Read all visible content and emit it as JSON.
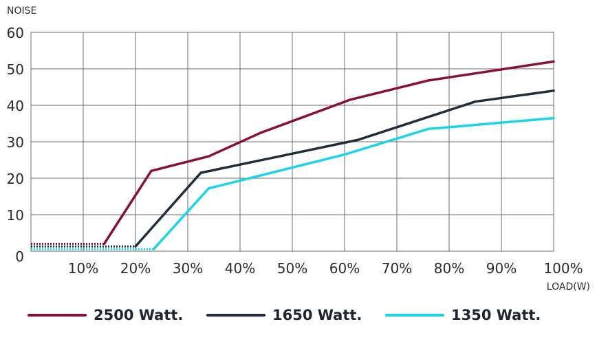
{
  "chart_data": {
    "type": "line",
    "ylabel": "NOISE",
    "xlabel": "LOAD(W)",
    "x_ticks": [
      "10%",
      "20%",
      "30%",
      "40%",
      "50%",
      "60%",
      "70%",
      "80%",
      "90%",
      "100%"
    ],
    "y_ticks": [
      "0",
      "10",
      "20",
      "30",
      "40",
      "50",
      "60"
    ],
    "xlim": [
      0,
      100
    ],
    "ylim": [
      0,
      60
    ],
    "grid": true,
    "legend_position": "bottom",
    "series": [
      {
        "name": "2500 Watt.",
        "color": "#8a0e3c",
        "dotted_segment": [
          [
            0,
            2
          ],
          [
            14,
            2
          ]
        ],
        "points": [
          [
            14,
            2
          ],
          [
            23,
            22
          ],
          [
            34,
            26
          ],
          [
            44,
            32.5
          ],
          [
            61,
            41.5
          ],
          [
            76,
            46.8
          ],
          [
            100,
            52
          ]
        ]
      },
      {
        "name": "1650 Watt.",
        "color": "#1f2d3d",
        "dotted_segment": [
          [
            0,
            1.3
          ],
          [
            20,
            1.3
          ]
        ],
        "points": [
          [
            20,
            1.3
          ],
          [
            32.5,
            21.5
          ],
          [
            62.5,
            30.5
          ],
          [
            85,
            41
          ],
          [
            100,
            44
          ]
        ]
      },
      {
        "name": "1350 Watt.",
        "color": "#19d4ea",
        "dotted_segment": [
          [
            0,
            0.6
          ],
          [
            23.5,
            0.6
          ]
        ],
        "points": [
          [
            23.5,
            0.6
          ],
          [
            34,
            17.2
          ],
          [
            60,
            26.5
          ],
          [
            76,
            33.5
          ],
          [
            100,
            36.5
          ]
        ]
      }
    ]
  }
}
